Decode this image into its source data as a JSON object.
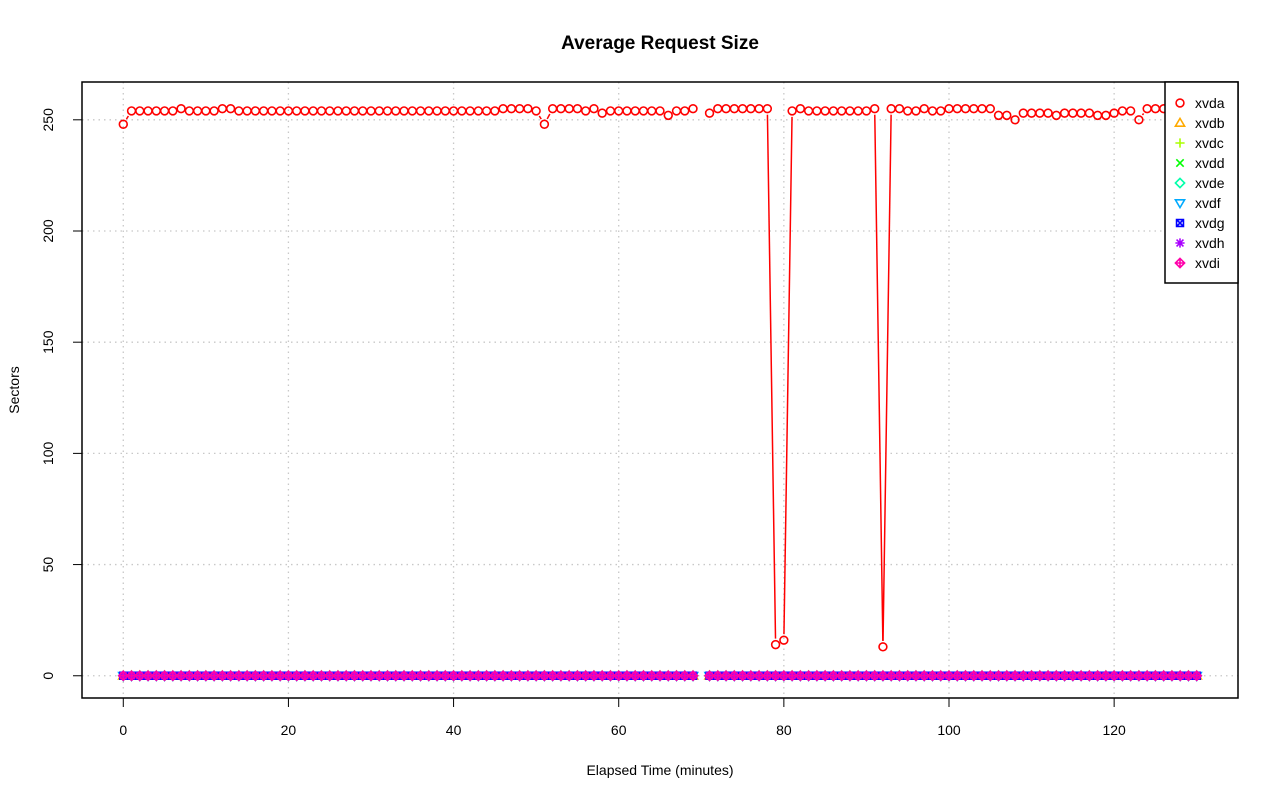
{
  "chart_data": {
    "type": "line",
    "title": "Average Request Size",
    "xlabel": "Elapsed Time (minutes)",
    "ylabel": "Sectors",
    "xlim": [
      -5,
      135
    ],
    "ylim": [
      -10,
      267
    ],
    "xticks": [
      0,
      20,
      40,
      60,
      80,
      100,
      120
    ],
    "yticks": [
      0,
      50,
      100,
      150,
      200,
      250
    ],
    "grid": true,
    "legend_position": "top-right",
    "gap_after_x": 69,
    "x_start": 0,
    "x_end": 130,
    "series": [
      {
        "name": "xvda",
        "color": "#ff0000",
        "marker": "circle",
        "x": [
          0,
          1,
          2,
          3,
          4,
          5,
          6,
          7,
          8,
          9,
          10,
          11,
          12,
          13,
          14,
          15,
          16,
          17,
          18,
          19,
          20,
          21,
          22,
          23,
          24,
          25,
          26,
          27,
          28,
          29,
          30,
          31,
          32,
          33,
          34,
          35,
          36,
          37,
          38,
          39,
          40,
          41,
          42,
          43,
          44,
          45,
          46,
          47,
          48,
          49,
          50,
          51,
          52,
          53,
          54,
          55,
          56,
          57,
          58,
          59,
          60,
          61,
          62,
          63,
          64,
          65,
          66,
          67,
          68,
          69,
          71,
          72,
          73,
          74,
          75,
          76,
          77,
          78,
          79,
          80,
          81,
          82,
          83,
          84,
          85,
          86,
          87,
          88,
          89,
          90,
          91,
          92,
          93,
          94,
          95,
          96,
          97,
          98,
          99,
          100,
          101,
          102,
          103,
          104,
          105,
          106,
          107,
          108,
          109,
          110,
          111,
          112,
          113,
          114,
          115,
          116,
          117,
          118,
          119,
          120,
          121,
          122,
          123,
          124,
          125,
          126,
          127,
          128,
          129,
          130
        ],
        "values": [
          248,
          254,
          254,
          254,
          254,
          254,
          254,
          255,
          254,
          254,
          254,
          254,
          255,
          255,
          254,
          254,
          254,
          254,
          254,
          254,
          254,
          254,
          254,
          254,
          254,
          254,
          254,
          254,
          254,
          254,
          254,
          254,
          254,
          254,
          254,
          254,
          254,
          254,
          254,
          254,
          254,
          254,
          254,
          254,
          254,
          254,
          255,
          255,
          255,
          255,
          254,
          248,
          255,
          255,
          255,
          255,
          254,
          255,
          253,
          254,
          254,
          254,
          254,
          254,
          254,
          254,
          252,
          254,
          254,
          255,
          253,
          255,
          255,
          255,
          255,
          255,
          255,
          255,
          14,
          16,
          254,
          255,
          254,
          254,
          254,
          254,
          254,
          254,
          254,
          254,
          255,
          13,
          255,
          255,
          254,
          254,
          255,
          254,
          254,
          255,
          255,
          255,
          255,
          255,
          255,
          252,
          252,
          250,
          253,
          253,
          253,
          253,
          252,
          253,
          253,
          253,
          253,
          252,
          252,
          253,
          254,
          254,
          250,
          255,
          255,
          255,
          255,
          255,
          255,
          255
        ]
      },
      {
        "name": "xvdb",
        "color": "#ffaa00",
        "marker": "triangle-up",
        "constant": 0
      },
      {
        "name": "xvdc",
        "color": "#aaff00",
        "marker": "plus",
        "constant": 0
      },
      {
        "name": "xvdd",
        "color": "#00ff00",
        "marker": "cross",
        "constant": 0
      },
      {
        "name": "xvde",
        "color": "#00ffaa",
        "marker": "diamond",
        "constant": 0
      },
      {
        "name": "xvdf",
        "color": "#00aaff",
        "marker": "triangle-down",
        "constant": 0
      },
      {
        "name": "xvdg",
        "color": "#0000ff",
        "marker": "square-x",
        "constant": 0
      },
      {
        "name": "xvdh",
        "color": "#aa00ff",
        "marker": "asterisk",
        "constant": 0
      },
      {
        "name": "xvdi",
        "color": "#ff00aa",
        "marker": "diamond-plus",
        "constant": 0
      }
    ]
  }
}
